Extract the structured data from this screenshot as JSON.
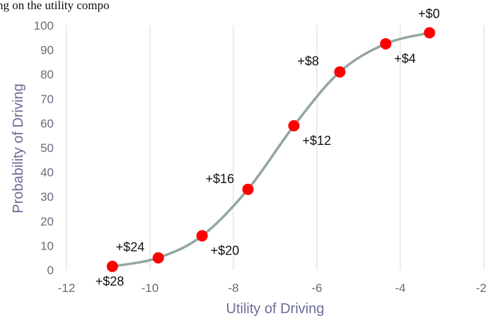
{
  "top_caption": "ng on the utility compo",
  "chart_data": {
    "type": "scatter",
    "title": "",
    "xlabel": "Utility of Driving",
    "ylabel": "Probability of Driving",
    "xlim": [
      -12,
      -2
    ],
    "ylim": [
      0,
      100
    ],
    "x_ticks": [
      -12,
      -10,
      -8,
      -6,
      -4,
      -2
    ],
    "x_tick_labels": [
      "-12",
      "-10",
      "-8",
      "-6",
      "-4",
      "-2"
    ],
    "y_ticks": [
      0,
      10,
      20,
      30,
      40,
      50,
      60,
      70,
      80,
      90,
      100
    ],
    "y_tick_labels": [
      "0",
      "10",
      "20",
      "30",
      "40",
      "50",
      "60",
      "70",
      "80",
      "90",
      "100"
    ],
    "grid": "vertical",
    "curve": "logistic",
    "points": [
      {
        "x": -10.9,
        "y": 1.5,
        "label": "+$28",
        "label_pos": "below"
      },
      {
        "x": -9.8,
        "y": 5,
        "label": "+$24",
        "label_pos": "above-left"
      },
      {
        "x": -8.75,
        "y": 14,
        "label": "+$20",
        "label_pos": "below-right"
      },
      {
        "x": -7.65,
        "y": 33,
        "label": "+$16",
        "label_pos": "above-left"
      },
      {
        "x": -6.55,
        "y": 59,
        "label": "+$12",
        "label_pos": "below-right"
      },
      {
        "x": -5.45,
        "y": 81,
        "label": "+$8",
        "label_pos": "above-left"
      },
      {
        "x": -4.35,
        "y": 92.5,
        "label": "+$4",
        "label_pos": "below-right"
      },
      {
        "x": -3.3,
        "y": 97,
        "label": "+$0",
        "label_pos": "above"
      }
    ],
    "colors": {
      "points": "#ff0000",
      "curve": "#93a69e",
      "grid": "#d9d9d9",
      "axis_text": "#6b6b7b",
      "axis_title": "#6b6b99"
    }
  }
}
